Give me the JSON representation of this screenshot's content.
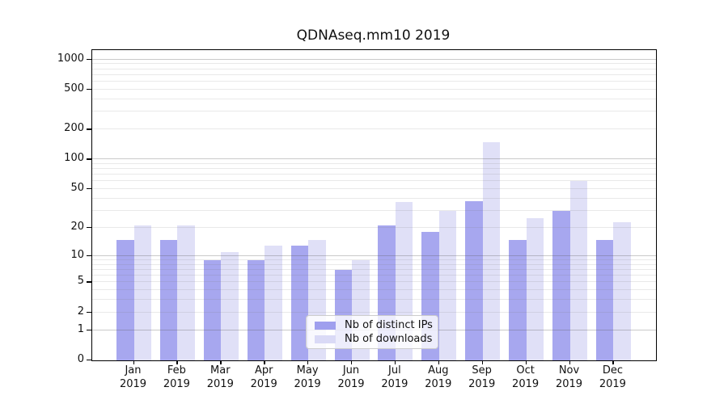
{
  "title": "QDNAseq.mm10 2019",
  "chart_data": {
    "type": "bar",
    "title": "QDNAseq.mm10 2019",
    "y_scale": "log1p",
    "grid": "on",
    "legend_position": "bottom-center",
    "year": "2019",
    "categories": [
      "Jan",
      "Feb",
      "Mar",
      "Apr",
      "May",
      "Jun",
      "Jul",
      "Aug",
      "Sep",
      "Oct",
      "Nov",
      "Dec"
    ],
    "series": [
      {
        "name": "Nb of distinct IPs",
        "color": "#9f9fee",
        "values": [
          15,
          15,
          9,
          9,
          13,
          7,
          21,
          18,
          38,
          15,
          30,
          15
        ]
      },
      {
        "name": "Nb of downloads",
        "color": "#dadaf6",
        "values": [
          21,
          21,
          11,
          13,
          15,
          9,
          37,
          30,
          150,
          25,
          60,
          23
        ]
      }
    ],
    "yticks": [
      0,
      1,
      2,
      5,
      10,
      20,
      50,
      100,
      200,
      500,
      1000
    ],
    "ylim": [
      0,
      1250
    ]
  }
}
